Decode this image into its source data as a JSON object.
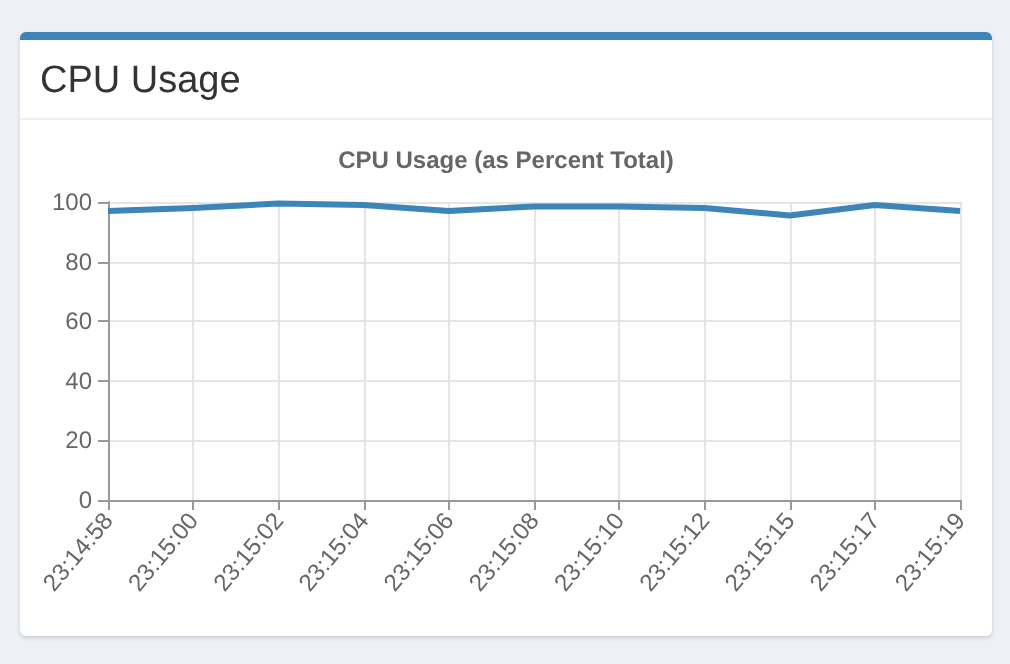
{
  "chart_data": {
    "type": "line",
    "title": "CPU Usage",
    "subtitle": "CPU Usage (as Percent Total)",
    "categories": [
      "23:14:58",
      "23:15:00",
      "23:15:02",
      "23:15:04",
      "23:15:06",
      "23:15:08",
      "23:15:10",
      "23:15:12",
      "23:15:15",
      "23:15:17",
      "23:15:19"
    ],
    "series": [
      {
        "color": "#3d85b8",
        "values": [
          97,
          98,
          99.5,
          99,
          97,
          98.5,
          98.5,
          98,
          95.5,
          99,
          97
        ]
      }
    ],
    "ylim": [
      0,
      100
    ],
    "yticks": [
      0,
      20,
      40,
      60,
      80,
      100
    ],
    "grid": true,
    "marker": "none",
    "line_style": "solid"
  }
}
